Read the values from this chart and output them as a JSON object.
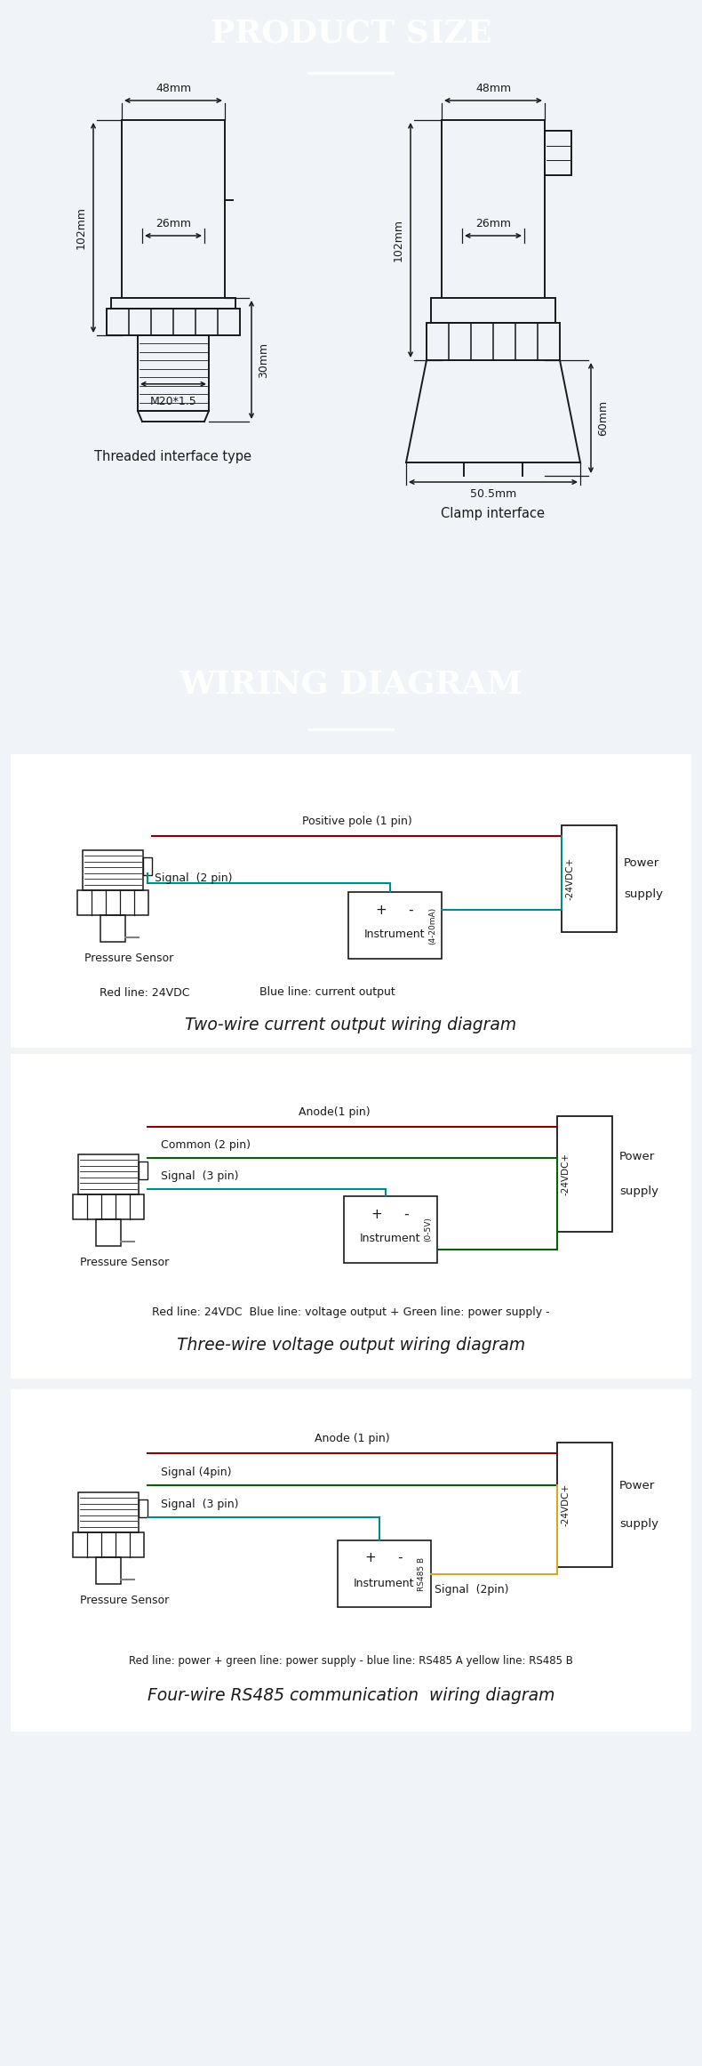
{
  "header_bg": "#2E7BB5",
  "header_text_color": "#FFFFFF",
  "page_bg": "#F0F4F8",
  "line_color": "#1A1A1A",
  "header1": "PRODUCT SIZE",
  "header2": "WIRING DIAGRAM",
  "label_threaded": "Threaded interface type",
  "label_clamp": "Clamp interface",
  "diag1_title": "Two-wire current output wiring diagram",
  "diag1_note1": "Red line: 24VDC",
  "diag1_note2": "Blue line: current output",
  "diag2_title": "Three-wire voltage output wiring diagram",
  "diag2_note": "Red line: 24VDC  Blue line: voltage output + Green line: power supply -",
  "diag3_title": "Four-wire RS485 communication  wiring diagram",
  "diag3_note": "Red line: power + green line: power supply - blue line: RS485 A yellow line: RS485 B",
  "red": "#8B0000",
  "blue": "#008B8B",
  "green": "#006400",
  "yellow": "#DAA520",
  "gray": "#808080"
}
